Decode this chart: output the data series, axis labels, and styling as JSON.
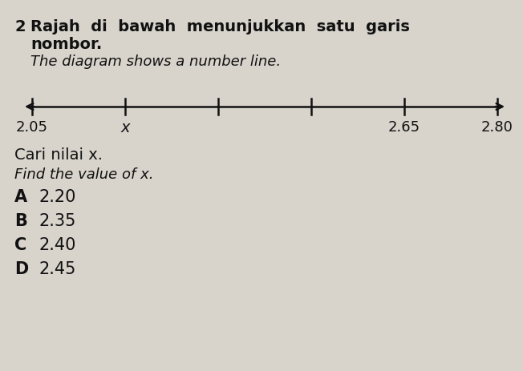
{
  "title_bold": "2",
  "title_text_justified": "Rajah  di  bawah  menunjukkan  satu  garis",
  "title_line2": "nombor.",
  "subtitle": "The diagram shows a number line.",
  "tick_positions": [
    2.05,
    2.2,
    2.35,
    2.5,
    2.65,
    2.8
  ],
  "labeled_ticks": {
    "2.05": "2.05",
    "2.20": "x",
    "2.65": "2.65",
    "2.80": "2.80"
  },
  "question_malay": "Cari nilai x.",
  "question_english": "Find the value of x.",
  "choices": [
    [
      "A",
      "2.20"
    ],
    [
      "B",
      "2.35"
    ],
    [
      "C",
      "2.40"
    ],
    [
      "D",
      "2.45"
    ]
  ],
  "bg_color": "#d8d4cc",
  "text_color": "#111111",
  "line_color": "#111111",
  "font_size_title": 14,
  "font_size_subtitle": 13,
  "font_size_body": 13,
  "font_size_choices": 14
}
